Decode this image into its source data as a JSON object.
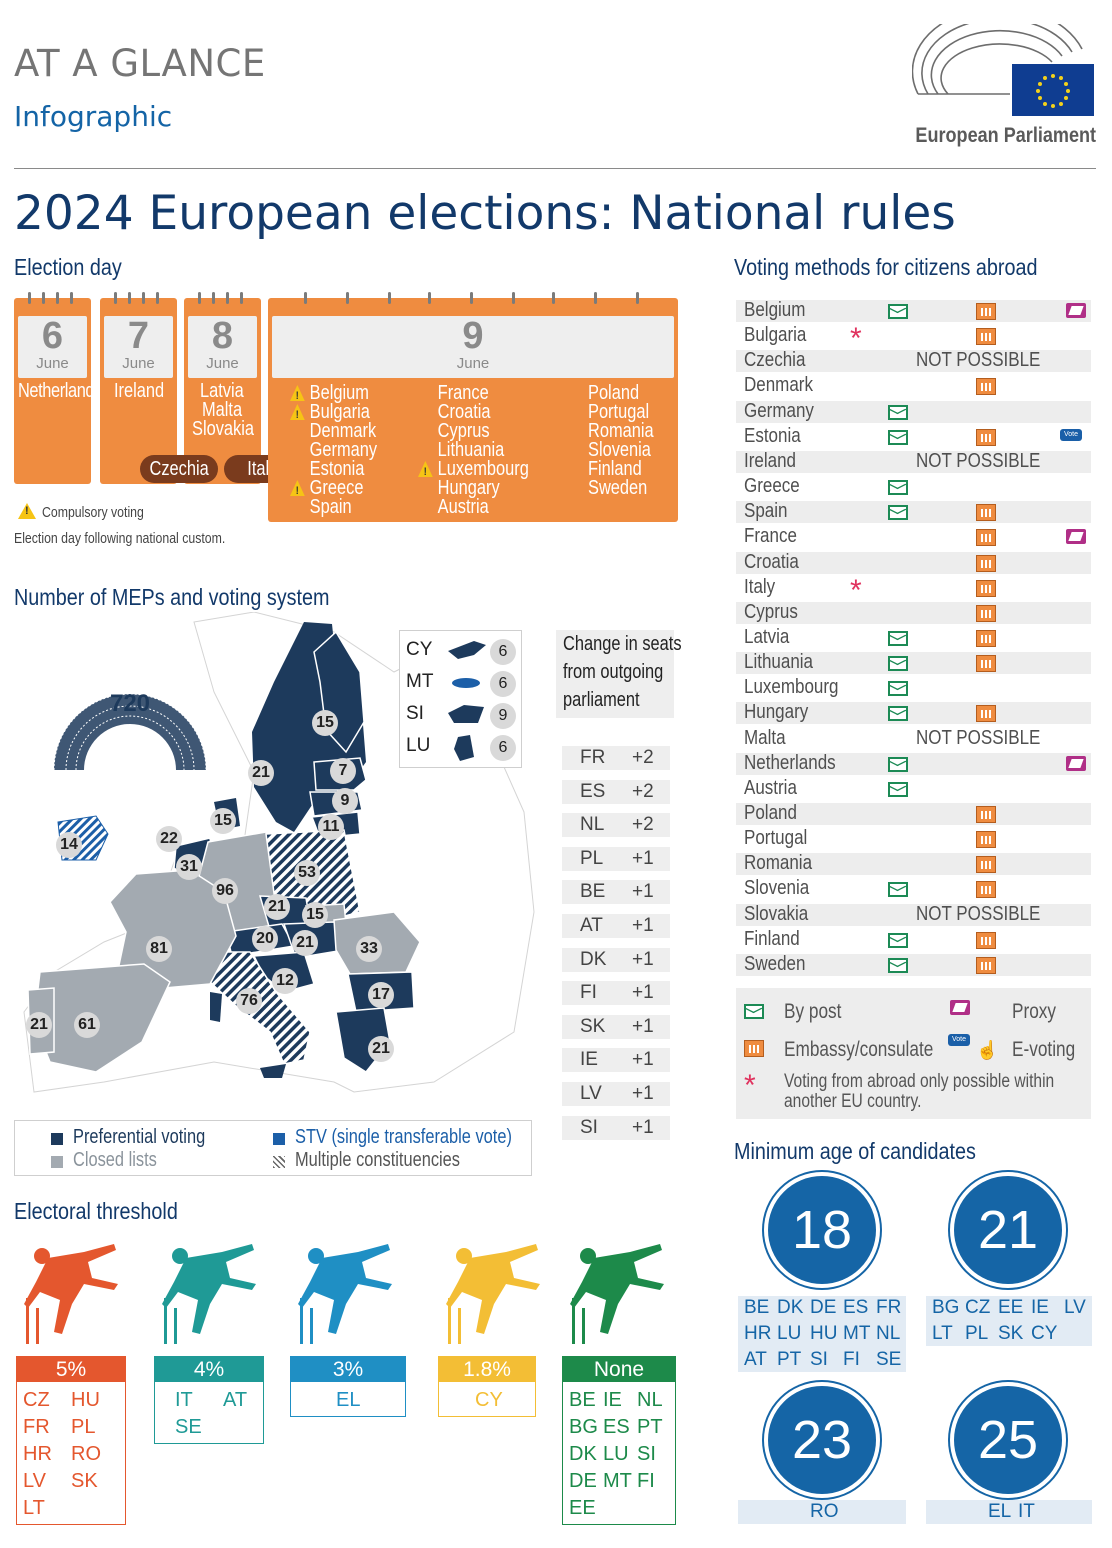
{
  "header": {
    "kicker": "AT A GLANCE",
    "subtitle": "Infographic",
    "logo_text": "European Parliament",
    "title": "2024 European elections: National rules"
  },
  "election_day": {
    "title": "Election day",
    "month": "June",
    "days": [
      {
        "day": "6",
        "countries": [
          "Netherlands"
        ]
      },
      {
        "day": "7",
        "countries": [
          "Ireland"
        ]
      },
      {
        "day": "8",
        "countries": [
          "Latvia",
          "Malta",
          "Slovakia"
        ]
      },
      {
        "day": "9",
        "col1": [
          "Belgium",
          "Bulgaria",
          "Denmark",
          "Germany",
          "Estonia",
          "Greece",
          "Spain"
        ],
        "col2": [
          "France",
          "Croatia",
          "Cyprus",
          "Lithuania",
          "Luxembourg",
          "Hungary",
          "Austria"
        ],
        "col3": [
          "Poland",
          "Portugal",
          "Romania",
          "Slovenia",
          "Finland",
          "Sweden"
        ]
      }
    ],
    "pills": [
      "Czechia",
      "Italy"
    ],
    "legend": "Compulsory voting",
    "note": "Election day following national custom."
  },
  "meps": {
    "title": "Number of MEPs and voting system",
    "total": "720",
    "small_states": [
      {
        "code": "CY",
        "seats": "6"
      },
      {
        "code": "MT",
        "seats": "6"
      },
      {
        "code": "SI",
        "seats": "9"
      },
      {
        "code": "LU",
        "seats": "6"
      }
    ],
    "map_numbers": [
      "15",
      "21",
      "7",
      "9",
      "11",
      "15",
      "22",
      "14",
      "31",
      "96",
      "53",
      "21",
      "15",
      "81",
      "20",
      "21",
      "33",
      "12",
      "76",
      "17",
      "21",
      "61",
      "21"
    ],
    "legend": {
      "preferential": "Preferential voting",
      "closed": "Closed lists",
      "stv": "STV (single transferable vote)",
      "multiple": "Multiple constituencies"
    },
    "colors": {
      "preferential": "#1d3a5c",
      "closed": "#a3aab1",
      "stv": "#1c5fa8",
      "sea": "#ffffff"
    }
  },
  "seat_change": {
    "title_lines": [
      "Change in seats",
      "from outgoing",
      "parliament"
    ],
    "rows": [
      {
        "code": "FR",
        "change": "+2"
      },
      {
        "code": "ES",
        "change": "+2"
      },
      {
        "code": "NL",
        "change": "+2"
      },
      {
        "code": "PL",
        "change": "+1"
      },
      {
        "code": "BE",
        "change": "+1"
      },
      {
        "code": "AT",
        "change": "+1"
      },
      {
        "code": "DK",
        "change": "+1"
      },
      {
        "code": "FI",
        "change": "+1"
      },
      {
        "code": "SK",
        "change": "+1"
      },
      {
        "code": "IE",
        "change": "+1"
      },
      {
        "code": "LV",
        "change": "+1"
      },
      {
        "code": "SI",
        "change": "+1"
      }
    ]
  },
  "voting_methods": {
    "title": "Voting methods for citizens abroad",
    "not_possible": "NOT POSSIBLE",
    "evote_label": "Vote",
    "rows": [
      {
        "country": "Belgium",
        "post": true,
        "embassy": true,
        "proxy": true
      },
      {
        "country": "Bulgaria",
        "star": true,
        "embassy": true
      },
      {
        "country": "Czechia",
        "none": true
      },
      {
        "country": "Denmark",
        "embassy": true
      },
      {
        "country": "Germany",
        "post": true
      },
      {
        "country": "Estonia",
        "post": true,
        "embassy": true,
        "evote": true
      },
      {
        "country": "Ireland",
        "none": true
      },
      {
        "country": "Greece",
        "post": true
      },
      {
        "country": "Spain",
        "post": true,
        "embassy": true
      },
      {
        "country": "France",
        "embassy": true,
        "proxy": true
      },
      {
        "country": "Croatia",
        "embassy": true
      },
      {
        "country": "Italy",
        "star": true,
        "embassy": true
      },
      {
        "country": "Cyprus",
        "embassy": true
      },
      {
        "country": "Latvia",
        "post": true,
        "embassy": true
      },
      {
        "country": "Lithuania",
        "post": true,
        "embassy": true
      },
      {
        "country": "Luxembourg",
        "post": true
      },
      {
        "country": "Hungary",
        "post": true,
        "embassy": true
      },
      {
        "country": "Malta",
        "none": true
      },
      {
        "country": "Netherlands",
        "post": true,
        "proxy": true
      },
      {
        "country": "Austria",
        "post": true
      },
      {
        "country": "Poland",
        "embassy": true
      },
      {
        "country": "Portugal",
        "embassy": true
      },
      {
        "country": "Romania",
        "embassy": true
      },
      {
        "country": "Slovenia",
        "post": true,
        "embassy": true
      },
      {
        "country": "Slovakia",
        "none": true
      },
      {
        "country": "Finland",
        "post": true,
        "embassy": true
      },
      {
        "country": "Sweden",
        "post": true,
        "embassy": true
      }
    ],
    "legend": {
      "post": "By post",
      "proxy": "Proxy",
      "embassy": "Embassy/consulate",
      "evoting": "E-voting",
      "star_line1": "Voting from abroad only possible within",
      "star_line2": "another EU country."
    }
  },
  "threshold": {
    "title": "Electoral threshold",
    "groups": [
      {
        "label": "5%",
        "color": "#e4572e",
        "codes": [
          "CZ",
          "HU",
          "FR",
          "PL",
          "HR",
          "RO",
          "LV",
          "SK",
          "LT"
        ]
      },
      {
        "label": "4%",
        "color": "#1f9a96",
        "codes": [
          "IT",
          "AT",
          "SE"
        ]
      },
      {
        "label": "3%",
        "color": "#1f8fc4",
        "codes": [
          "EL"
        ]
      },
      {
        "label": "1.8%",
        "color": "#f3be35",
        "codes": [
          "CY"
        ]
      },
      {
        "label": "None",
        "color": "#1d8a4a",
        "codes": [
          "BE",
          "IE",
          "NL",
          "BG",
          "ES",
          "PT",
          "DK",
          "LU",
          "SI",
          "DE",
          "MT",
          "FI",
          "EE"
        ]
      }
    ]
  },
  "min_age": {
    "title": "Minimum age of candidates",
    "groups": [
      {
        "age": "18",
        "codes": [
          "BE",
          "DK",
          "DE",
          "ES",
          "FR",
          "HR",
          "LU",
          "HU",
          "MT",
          "NL",
          "AT",
          "PT",
          "SI",
          "FI",
          "SE"
        ]
      },
      {
        "age": "21",
        "codes": [
          "BG",
          "CZ",
          "EE",
          "IE",
          "LV",
          "LT",
          "PL",
          "SK",
          "CY"
        ]
      },
      {
        "age": "23",
        "codes": [
          "RO"
        ]
      },
      {
        "age": "25",
        "codes": [
          "EL",
          "IT"
        ]
      }
    ]
  }
}
